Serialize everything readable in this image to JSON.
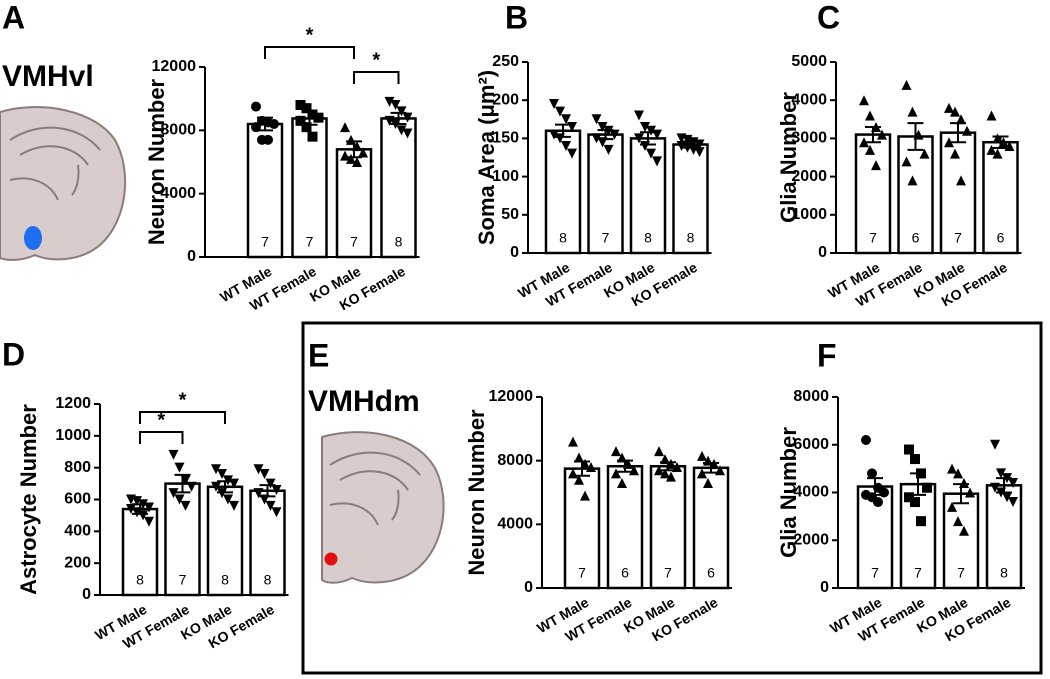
{
  "chart_data": [
    {
      "type": "bar",
      "panel": "A",
      "region": "VMHvl",
      "ylabel": "Neuron Number",
      "categories": [
        "WT Male",
        "WT Female",
        "KO Male",
        "KO Female"
      ],
      "values": [
        8400,
        8750,
        6800,
        8750
      ],
      "errors": [
        400,
        400,
        500,
        350
      ],
      "n_labels": [
        7,
        7,
        7,
        8
      ],
      "points": [
        [
          9500,
          8600,
          8500,
          8400,
          8200,
          7400,
          7400
        ],
        [
          9600,
          9400,
          9000,
          8800,
          8600,
          8200,
          7600
        ],
        [
          8200,
          7400,
          7000,
          6600,
          6400,
          6200,
          6000
        ],
        [
          9800,
          9600,
          9200,
          8800,
          8600,
          8400,
          8000,
          7800
        ]
      ],
      "markers": [
        "circle",
        "square",
        "triangle",
        "triangle-down"
      ],
      "ylim": [
        0,
        12000
      ],
      "yticks": [
        0,
        4000,
        8000,
        12000
      ],
      "brackets": [
        {
          "from": 0,
          "to": 2,
          "label": "*"
        },
        {
          "from": 2,
          "to": 3,
          "label": "*"
        }
      ]
    },
    {
      "type": "bar",
      "panel": "B",
      "ylabel": "Soma Area (μm²)",
      "categories": [
        "WT Male",
        "WT Female",
        "KO Male",
        "KO Female"
      ],
      "values": [
        160,
        155,
        150,
        142
      ],
      "errors": [
        8,
        6,
        8,
        4
      ],
      "n_labels": [
        8,
        7,
        8,
        8
      ],
      "points": [
        [
          195,
          185,
          175,
          165,
          155,
          150,
          140,
          130
        ],
        [
          175,
          165,
          160,
          155,
          150,
          145,
          135
        ],
        [
          180,
          165,
          160,
          155,
          150,
          140,
          130,
          120
        ],
        [
          150,
          148,
          145,
          142,
          140,
          138,
          135,
          132
        ]
      ],
      "markers": [
        "triangle-down",
        "triangle-down",
        "triangle-down",
        "triangle-down"
      ],
      "ylim": [
        0,
        250
      ],
      "yticks": [
        0,
        50,
        100,
        150,
        200,
        250
      ]
    },
    {
      "type": "bar",
      "panel": "C",
      "ylabel": "Glia Number",
      "categories": [
        "WT Male",
        "WT Female",
        "KO Male",
        "KO Female"
      ],
      "values": [
        3100,
        3050,
        3150,
        2900
      ],
      "errors": [
        200,
        350,
        250,
        150
      ],
      "n_labels": [
        7,
        6,
        7,
        6
      ],
      "points": [
        [
          4000,
          3600,
          3300,
          3100,
          2900,
          2700,
          2300
        ],
        [
          4400,
          3700,
          3100,
          2600,
          2400,
          1900
        ],
        [
          3800,
          3700,
          3500,
          3200,
          2900,
          2600,
          1900
        ],
        [
          3600,
          3000,
          2900,
          2800,
          2700,
          2600
        ]
      ],
      "markers": [
        "triangle",
        "triangle",
        "triangle",
        "triangle"
      ],
      "ylim": [
        0,
        5000
      ],
      "yticks": [
        0,
        1000,
        2000,
        3000,
        4000,
        5000
      ]
    },
    {
      "type": "bar",
      "panel": "D",
      "ylabel": "Astrocyte Number",
      "categories": [
        "WT Male",
        "WT Female",
        "KO Male",
        "KO Female"
      ],
      "values": [
        540,
        700,
        680,
        655
      ],
      "errors": [
        30,
        55,
        35,
        35
      ],
      "n_labels": [
        8,
        7,
        8,
        8
      ],
      "points": [
        [
          600,
          590,
          570,
          550,
          540,
          520,
          500,
          460
        ],
        [
          880,
          800,
          720,
          680,
          640,
          600,
          560
        ],
        [
          790,
          760,
          720,
          700,
          680,
          640,
          600,
          560
        ],
        [
          790,
          760,
          700,
          660,
          640,
          600,
          560,
          520
        ]
      ],
      "markers": [
        "triangle-down",
        "triangle-down",
        "triangle-down",
        "triangle-down"
      ],
      "ylim": [
        0,
        1200
      ],
      "yticks": [
        0,
        200,
        400,
        600,
        800,
        1000,
        1200
      ],
      "brackets": [
        {
          "from": 0,
          "to": 1,
          "label": "*"
        },
        {
          "from": 0,
          "to": 2,
          "label": "*"
        }
      ]
    },
    {
      "type": "bar",
      "panel": "E",
      "region": "VMHdm",
      "ylabel": "Neuron Number",
      "categories": [
        "WT Male",
        "WT Female",
        "KO Male",
        "KO Female"
      ],
      "values": [
        7500,
        7650,
        7650,
        7550
      ],
      "errors": [
        450,
        350,
        250,
        300
      ],
      "n_labels": [
        7,
        6,
        7,
        6
      ],
      "points": [
        [
          9200,
          8200,
          7800,
          7600,
          7200,
          6800,
          5800
        ],
        [
          8600,
          8200,
          7800,
          7400,
          7200,
          6600
        ],
        [
          8600,
          8100,
          7800,
          7600,
          7400,
          7200,
          7000
        ],
        [
          8300,
          8000,
          7800,
          7400,
          7200,
          6600
        ]
      ],
      "markers": [
        "triangle",
        "triangle",
        "triangle",
        "triangle"
      ],
      "ylim": [
        0,
        12000
      ],
      "yticks": [
        0,
        4000,
        8000,
        12000
      ]
    },
    {
      "type": "bar",
      "panel": "F",
      "ylabel": "Glia Number",
      "categories": [
        "WT Male",
        "WT Female",
        "KO Male",
        "KO Female"
      ],
      "values": [
        4250,
        4350,
        3950,
        4300
      ],
      "errors": [
        350,
        450,
        400,
        300
      ],
      "n_labels": [
        7,
        7,
        7,
        8
      ],
      "points": [
        [
          6200,
          4800,
          4200,
          4000,
          3900,
          3800,
          3600
        ],
        [
          5800,
          5400,
          4800,
          4200,
          3800,
          3600,
          2800
        ],
        [
          5000,
          4800,
          4400,
          4000,
          3400,
          2800,
          2400
        ],
        [
          6000,
          4800,
          4600,
          4400,
          4200,
          4000,
          3800,
          3600
        ]
      ],
      "markers": [
        "circle",
        "square",
        "triangle",
        "triangle-down"
      ],
      "ylim": [
        0,
        8000
      ],
      "yticks": [
        0,
        2000,
        4000,
        6000,
        8000
      ]
    }
  ]
}
